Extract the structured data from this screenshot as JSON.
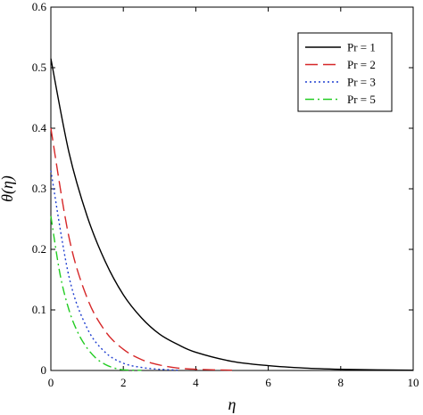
{
  "chart_data": {
    "type": "line",
    "title": "",
    "xlabel": "η",
    "ylabel": "θ(η)",
    "xlim": [
      0,
      10
    ],
    "ylim": [
      0,
      0.6
    ],
    "x_ticks": [
      "0",
      "2",
      "4",
      "6",
      "8",
      "10"
    ],
    "y_ticks": [
      "0",
      "0.1",
      "0.2",
      "0.3",
      "0.4",
      "0.5",
      "0.6"
    ],
    "grid": false,
    "legend_position": "top-right",
    "series": [
      {
        "name": "Pr = 1",
        "color": "#000000",
        "dash": "solid",
        "x": [
          0,
          0.5,
          1,
          1.5,
          2,
          2.5,
          3,
          3.5,
          4,
          5,
          6,
          7,
          8,
          9,
          10
        ],
        "y": [
          0.515,
          0.36,
          0.255,
          0.18,
          0.125,
          0.087,
          0.06,
          0.043,
          0.03,
          0.015,
          0.008,
          0.004,
          0.002,
          0.001,
          0.0005
        ]
      },
      {
        "name": "Pr = 2",
        "color": "#d62728",
        "dash": "long-dash",
        "x": [
          0,
          0.5,
          1,
          1.5,
          2,
          2.5,
          3,
          3.5,
          4,
          4.5,
          5
        ],
        "y": [
          0.4,
          0.22,
          0.12,
          0.065,
          0.035,
          0.018,
          0.009,
          0.004,
          0.002,
          0.001,
          0.0005
        ]
      },
      {
        "name": "Pr = 3",
        "color": "#1f3fd0",
        "dash": "dotted",
        "x": [
          0,
          0.5,
          1,
          1.5,
          2,
          2.5,
          3,
          3.5
        ],
        "y": [
          0.33,
          0.155,
          0.07,
          0.03,
          0.012,
          0.005,
          0.002,
          0.0005
        ]
      },
      {
        "name": "Pr = 5",
        "color": "#22cc22",
        "dash": "dash-dot",
        "x": [
          0,
          0.25,
          0.5,
          0.75,
          1,
          1.25,
          1.5,
          1.75,
          2,
          2.5
        ],
        "y": [
          0.255,
          0.16,
          0.1,
          0.062,
          0.037,
          0.02,
          0.01,
          0.004,
          0.001,
          0.0002
        ]
      }
    ]
  }
}
